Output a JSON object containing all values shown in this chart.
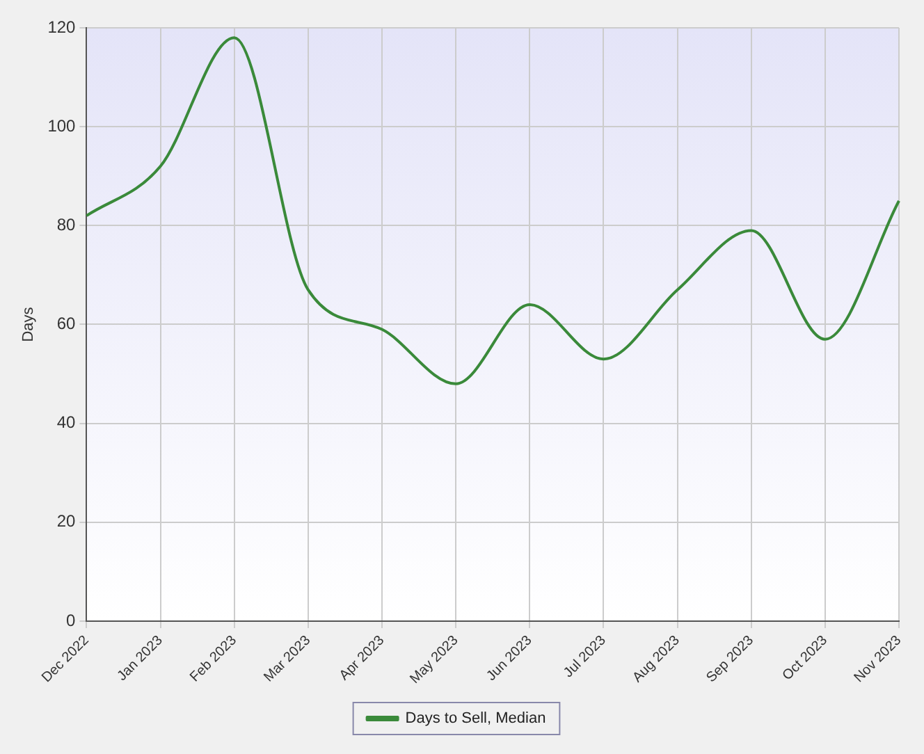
{
  "chart_data": {
    "type": "line",
    "ylabel": "Days",
    "categories": [
      "Dec 2022",
      "Jan 2023",
      "Feb 2023",
      "Mar 2023",
      "Apr 2023",
      "May 2023",
      "Jun 2023",
      "Jul 2023",
      "Aug 2023",
      "Sep 2023",
      "Oct 2023",
      "Nov 2023"
    ],
    "series": [
      {
        "name": "Days to Sell, Median",
        "color": "#3a8a3a",
        "values": [
          82,
          92,
          118,
          67,
          59,
          48,
          64,
          53,
          67,
          79,
          57,
          85
        ]
      }
    ],
    "ylim": [
      0,
      120
    ],
    "yticks": [
      0,
      20,
      40,
      60,
      80,
      100,
      120
    ],
    "grid": true,
    "legend": "bottom",
    "marker": "none"
  }
}
